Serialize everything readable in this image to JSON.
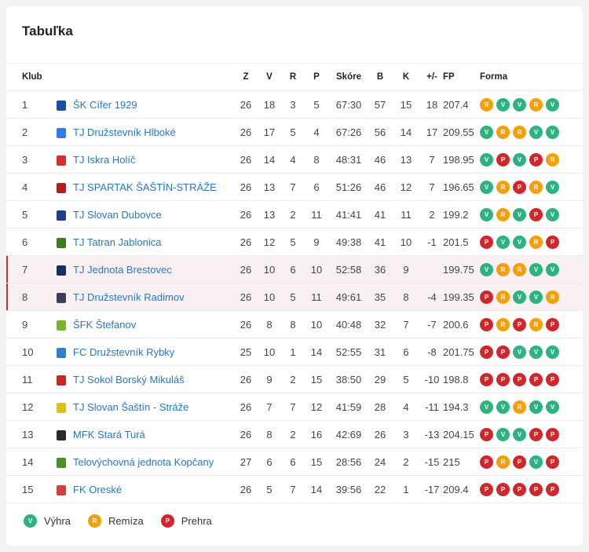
{
  "title": "Tabuľka",
  "headers": {
    "club": "Klub",
    "z": "Z",
    "v": "V",
    "r": "R",
    "p": "P",
    "score": "Skóre",
    "b": "B",
    "k": "K",
    "diff": "+/-",
    "fp": "FP",
    "form": "Forma"
  },
  "rows": [
    {
      "pos": "1",
      "club": "ŠK Cífer 1929",
      "z": "26",
      "v": "18",
      "r": "3",
      "p": "5",
      "score": "67:30",
      "b": "57",
      "k": "15",
      "diff": "18",
      "fp": "207.4",
      "form": [
        "R",
        "V",
        "V",
        "R",
        "V"
      ],
      "crest": "#1c4fa3"
    },
    {
      "pos": "2",
      "club": "TJ Družstevník Hlboké",
      "z": "26",
      "v": "17",
      "r": "5",
      "p": "4",
      "score": "67:26",
      "b": "56",
      "k": "14",
      "diff": "17",
      "fp": "209.55",
      "form": [
        "V",
        "R",
        "R",
        "V",
        "V"
      ],
      "crest": "#2f7de1"
    },
    {
      "pos": "3",
      "club": "TJ Iskra Holíč",
      "z": "26",
      "v": "14",
      "r": "4",
      "p": "8",
      "score": "48:31",
      "b": "46",
      "k": "13",
      "diff": "7",
      "fp": "198.95",
      "form": [
        "V",
        "P",
        "V",
        "P",
        "R"
      ],
      "crest": "#d32f2f"
    },
    {
      "pos": "4",
      "club": "TJ SPARTAK ŠAŠTÍN-STRÁŽE",
      "z": "26",
      "v": "13",
      "r": "7",
      "p": "6",
      "score": "51:26",
      "b": "46",
      "k": "12",
      "diff": "7",
      "fp": "196.65",
      "form": [
        "V",
        "R",
        "P",
        "R",
        "V"
      ],
      "crest": "#b71c1c"
    },
    {
      "pos": "5",
      "club": "TJ Slovan Dubovce",
      "z": "26",
      "v": "13",
      "r": "2",
      "p": "11",
      "score": "41:41",
      "b": "41",
      "k": "11",
      "diff": "2",
      "fp": "199.2",
      "form": [
        "V",
        "R",
        "V",
        "P",
        "V"
      ],
      "crest": "#1e3f8a"
    },
    {
      "pos": "6",
      "club": "TJ Tatran Jablonica",
      "z": "26",
      "v": "12",
      "r": "5",
      "p": "9",
      "score": "49:38",
      "b": "41",
      "k": "10",
      "diff": "-1",
      "fp": "201.5",
      "form": [
        "P",
        "V",
        "V",
        "R",
        "P"
      ],
      "crest": "#3d7a1f"
    },
    {
      "pos": "7",
      "club": "TJ Jednota Brestovec",
      "z": "26",
      "v": "10",
      "r": "6",
      "p": "10",
      "score": "52:58",
      "b": "36",
      "k": "9",
      "diff": "",
      "fp": "199.75",
      "form": [
        "V",
        "R",
        "R",
        "V",
        "V"
      ],
      "crest": "#14305e",
      "hl": true
    },
    {
      "pos": "8",
      "club": "TJ Družstevník Radimov",
      "z": "26",
      "v": "10",
      "r": "5",
      "p": "11",
      "score": "49:61",
      "b": "35",
      "k": "8",
      "diff": "-4",
      "fp": "199.35",
      "form": [
        "P",
        "R",
        "V",
        "V",
        "R"
      ],
      "crest": "#3a3f5c",
      "hl": true
    },
    {
      "pos": "9",
      "club": "ŠFK Štefanov",
      "z": "26",
      "v": "8",
      "r": "8",
      "p": "10",
      "score": "40:48",
      "b": "32",
      "k": "7",
      "diff": "-7",
      "fp": "200.6",
      "form": [
        "P",
        "R",
        "P",
        "R",
        "P"
      ],
      "crest": "#7ab32e"
    },
    {
      "pos": "10",
      "club": "FC Družstevník Rybky",
      "z": "25",
      "v": "10",
      "r": "1",
      "p": "14",
      "score": "52:55",
      "b": "31",
      "k": "6",
      "diff": "-8",
      "fp": "201.75",
      "form": [
        "P",
        "P",
        "V",
        "V",
        "V"
      ],
      "crest": "#2f80c9"
    },
    {
      "pos": "11",
      "club": "TJ Sokol Borský Mikuláš",
      "z": "26",
      "v": "9",
      "r": "2",
      "p": "15",
      "score": "38:50",
      "b": "29",
      "k": "5",
      "diff": "-10",
      "fp": "198.8",
      "form": [
        "P",
        "P",
        "P",
        "P",
        "P"
      ],
      "crest": "#c62828"
    },
    {
      "pos": "12",
      "club": "TJ Slovan Šaštín - Stráže",
      "z": "26",
      "v": "7",
      "r": "7",
      "p": "12",
      "score": "41:59",
      "b": "28",
      "k": "4",
      "diff": "-11",
      "fp": "194.3",
      "form": [
        "V",
        "V",
        "R",
        "V",
        "V"
      ],
      "crest": "#e0c020"
    },
    {
      "pos": "13",
      "club": "MFK Stará Turá",
      "z": "26",
      "v": "8",
      "r": "2",
      "p": "16",
      "score": "42:69",
      "b": "26",
      "k": "3",
      "diff": "-13",
      "fp": "204.15",
      "form": [
        "P",
        "V",
        "V",
        "P",
        "P"
      ],
      "crest": "#2b2b2b"
    },
    {
      "pos": "14",
      "club": "Telovýchovná jednota Kopčany",
      "z": "27",
      "v": "6",
      "r": "6",
      "p": "15",
      "score": "28:56",
      "b": "24",
      "k": "2",
      "diff": "-15",
      "fp": "215",
      "form": [
        "P",
        "R",
        "P",
        "V",
        "P"
      ],
      "crest": "#4a8f2a"
    },
    {
      "pos": "15",
      "club": "FK Oreské",
      "z": "26",
      "v": "5",
      "r": "7",
      "p": "14",
      "score": "39:56",
      "b": "22",
      "k": "1",
      "diff": "-17",
      "fp": "209.4",
      "form": [
        "P",
        "P",
        "P",
        "P",
        "P"
      ],
      "crest": "#d04040"
    }
  ],
  "legend": [
    {
      "letter": "V",
      "label": "Výhra"
    },
    {
      "letter": "R",
      "label": "Remíza"
    },
    {
      "letter": "P",
      "label": "Prehra"
    }
  ]
}
